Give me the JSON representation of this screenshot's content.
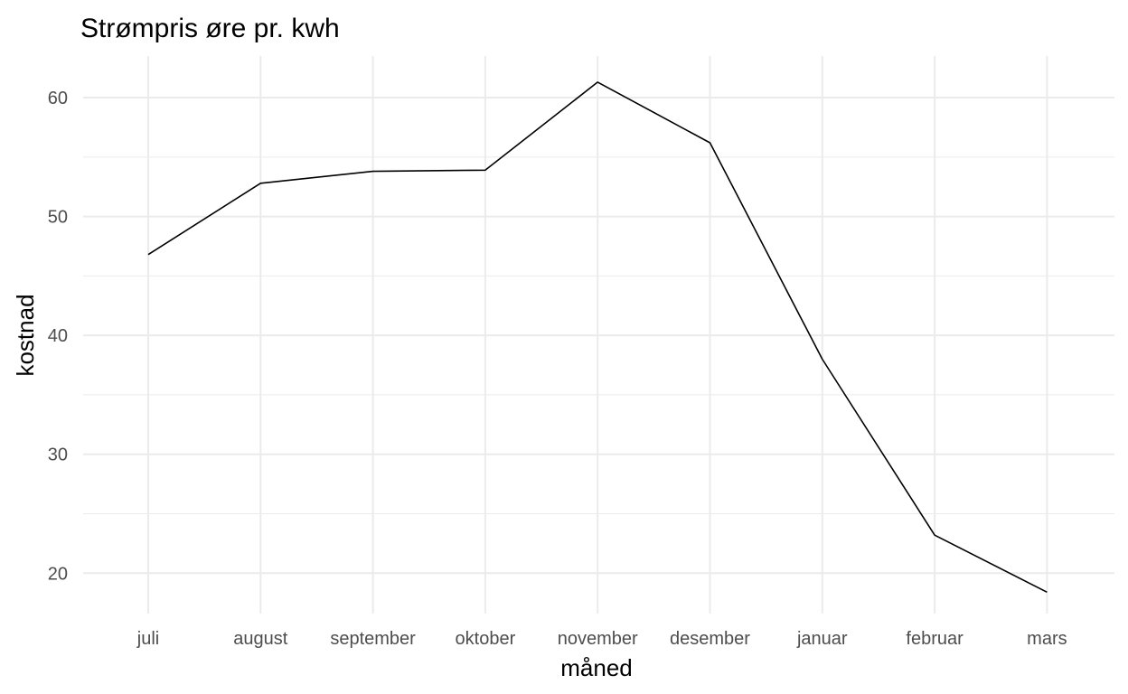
{
  "chart_data": {
    "type": "line",
    "title": "Strømpris øre pr. kwh",
    "xlabel": "måned",
    "ylabel": "kostnad",
    "categories": [
      "juli",
      "august",
      "september",
      "oktober",
      "november",
      "desember",
      "januar",
      "februar",
      "mars"
    ],
    "series": [
      {
        "values": [
          46.8,
          52.8,
          53.8,
          53.9,
          61.3,
          56.2,
          38.0,
          23.2,
          18.4
        ]
      }
    ],
    "ylim": [
      16.6,
      63.5
    ],
    "yticks": [
      "20",
      "30",
      "40",
      "50",
      "60"
    ],
    "grid": true,
    "legend": "none",
    "colors": {
      "line": "#000000",
      "grid": "#ebebeb",
      "tick_text": "#4d4d4d"
    }
  }
}
